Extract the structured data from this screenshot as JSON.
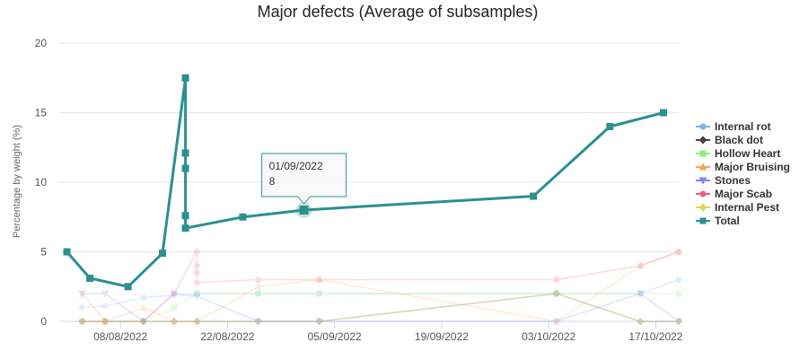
{
  "chart_data": {
    "type": "line",
    "title": "Major defects (Average of subsamples)",
    "xlabel": "",
    "ylabel": "Percentage by weight (%)",
    "ylim": [
      0,
      20
    ],
    "yticks": [
      "0",
      "5",
      "10",
      "15",
      "20"
    ],
    "xticks": [
      "08/08/2022",
      "22/08/2022",
      "05/09/2022",
      "19/09/2022",
      "03/10/2022",
      "17/10/2022"
    ],
    "xtick_days": [
      7,
      21,
      35,
      49,
      63,
      77
    ],
    "xlim_days": [
      -1,
      80
    ],
    "date_origin": "2022-08-01",
    "grid": true,
    "legend_position": "right",
    "series": [
      {
        "name": "Internal rot",
        "color": "#7cb5ec",
        "marker": "circle",
        "points": [
          [
            2,
            1
          ],
          [
            5,
            1.1
          ],
          [
            10,
            1.7
          ],
          [
            14,
            1.9
          ],
          [
            17,
            2
          ],
          [
            25,
            2
          ],
          [
            33,
            2
          ],
          [
            64,
            2
          ],
          [
            75,
            2
          ],
          [
            80,
            3
          ]
        ]
      },
      {
        "name": "Black dot",
        "color": "#434348",
        "marker": "diamond",
        "points": [
          [
            2,
            0
          ],
          [
            5,
            0
          ],
          [
            10,
            0
          ],
          [
            14,
            0
          ],
          [
            17,
            0
          ],
          [
            25,
            0
          ],
          [
            33,
            0
          ],
          [
            64,
            2
          ],
          [
            75,
            0
          ],
          [
            80,
            0
          ]
        ]
      },
      {
        "name": "Hollow Heart",
        "color": "#90ed7d",
        "marker": "square",
        "points": [
          [
            2,
            0
          ],
          [
            5,
            0
          ],
          [
            10,
            0
          ],
          [
            14,
            1
          ],
          [
            17,
            2
          ],
          [
            25,
            2
          ],
          [
            33,
            2
          ],
          [
            64,
            2
          ],
          [
            75,
            2
          ],
          [
            80,
            2
          ]
        ]
      },
      {
        "name": "Major Bruising",
        "color": "#f7a35c",
        "marker": "triangle",
        "points": [
          [
            2,
            2
          ],
          [
            5,
            0
          ],
          [
            10,
            1
          ],
          [
            14,
            0
          ],
          [
            17,
            0
          ],
          [
            25,
            2.5
          ],
          [
            33,
            3
          ],
          [
            64,
            0
          ],
          [
            75,
            4
          ],
          [
            80,
            5
          ]
        ]
      },
      {
        "name": "Stones",
        "color": "#8085e9",
        "marker": "triangle-down",
        "points": [
          [
            2,
            2
          ],
          [
            5,
            2
          ],
          [
            10,
            0
          ],
          [
            14,
            2
          ],
          [
            17,
            1.8
          ],
          [
            25,
            0
          ],
          [
            33,
            0
          ],
          [
            64,
            0
          ],
          [
            75,
            2
          ],
          [
            80,
            0
          ]
        ]
      },
      {
        "name": "Major Scab",
        "color": "#f15c80",
        "marker": "circle",
        "points": [
          [
            2,
            0
          ],
          [
            5,
            0
          ],
          [
            10,
            0
          ],
          [
            14,
            2
          ],
          [
            17,
            5
          ],
          [
            17,
            4
          ],
          [
            17,
            3.5
          ],
          [
            17,
            2.8
          ],
          [
            25,
            3
          ],
          [
            33,
            3
          ],
          [
            64,
            3
          ],
          [
            75,
            4
          ],
          [
            80,
            5
          ]
        ]
      },
      {
        "name": "Internal Pest",
        "color": "#e4d354",
        "marker": "diamond",
        "points": [
          [
            2,
            0
          ],
          [
            5,
            0
          ],
          [
            10,
            0
          ],
          [
            14,
            0
          ],
          [
            17,
            0
          ],
          [
            25,
            0
          ],
          [
            33,
            0
          ],
          [
            64,
            2
          ],
          [
            75,
            0
          ],
          [
            80,
            0
          ]
        ]
      },
      {
        "name": "Total",
        "color": "#2b908f",
        "marker": "square",
        "points": [
          [
            0,
            5
          ],
          [
            3,
            3.1
          ],
          [
            8,
            2.5
          ],
          [
            12.5,
            4.9
          ],
          [
            15.5,
            17.5
          ],
          [
            15.5,
            12.1
          ],
          [
            15.5,
            11
          ],
          [
            15.5,
            7.6
          ],
          [
            15.5,
            6.7
          ],
          [
            23,
            7.5
          ],
          [
            31,
            8
          ],
          [
            61,
            9
          ],
          [
            71,
            14
          ],
          [
            78,
            15
          ]
        ]
      }
    ],
    "tooltip": {
      "series": "Total",
      "date": "01/09/2022",
      "value": "8"
    }
  }
}
